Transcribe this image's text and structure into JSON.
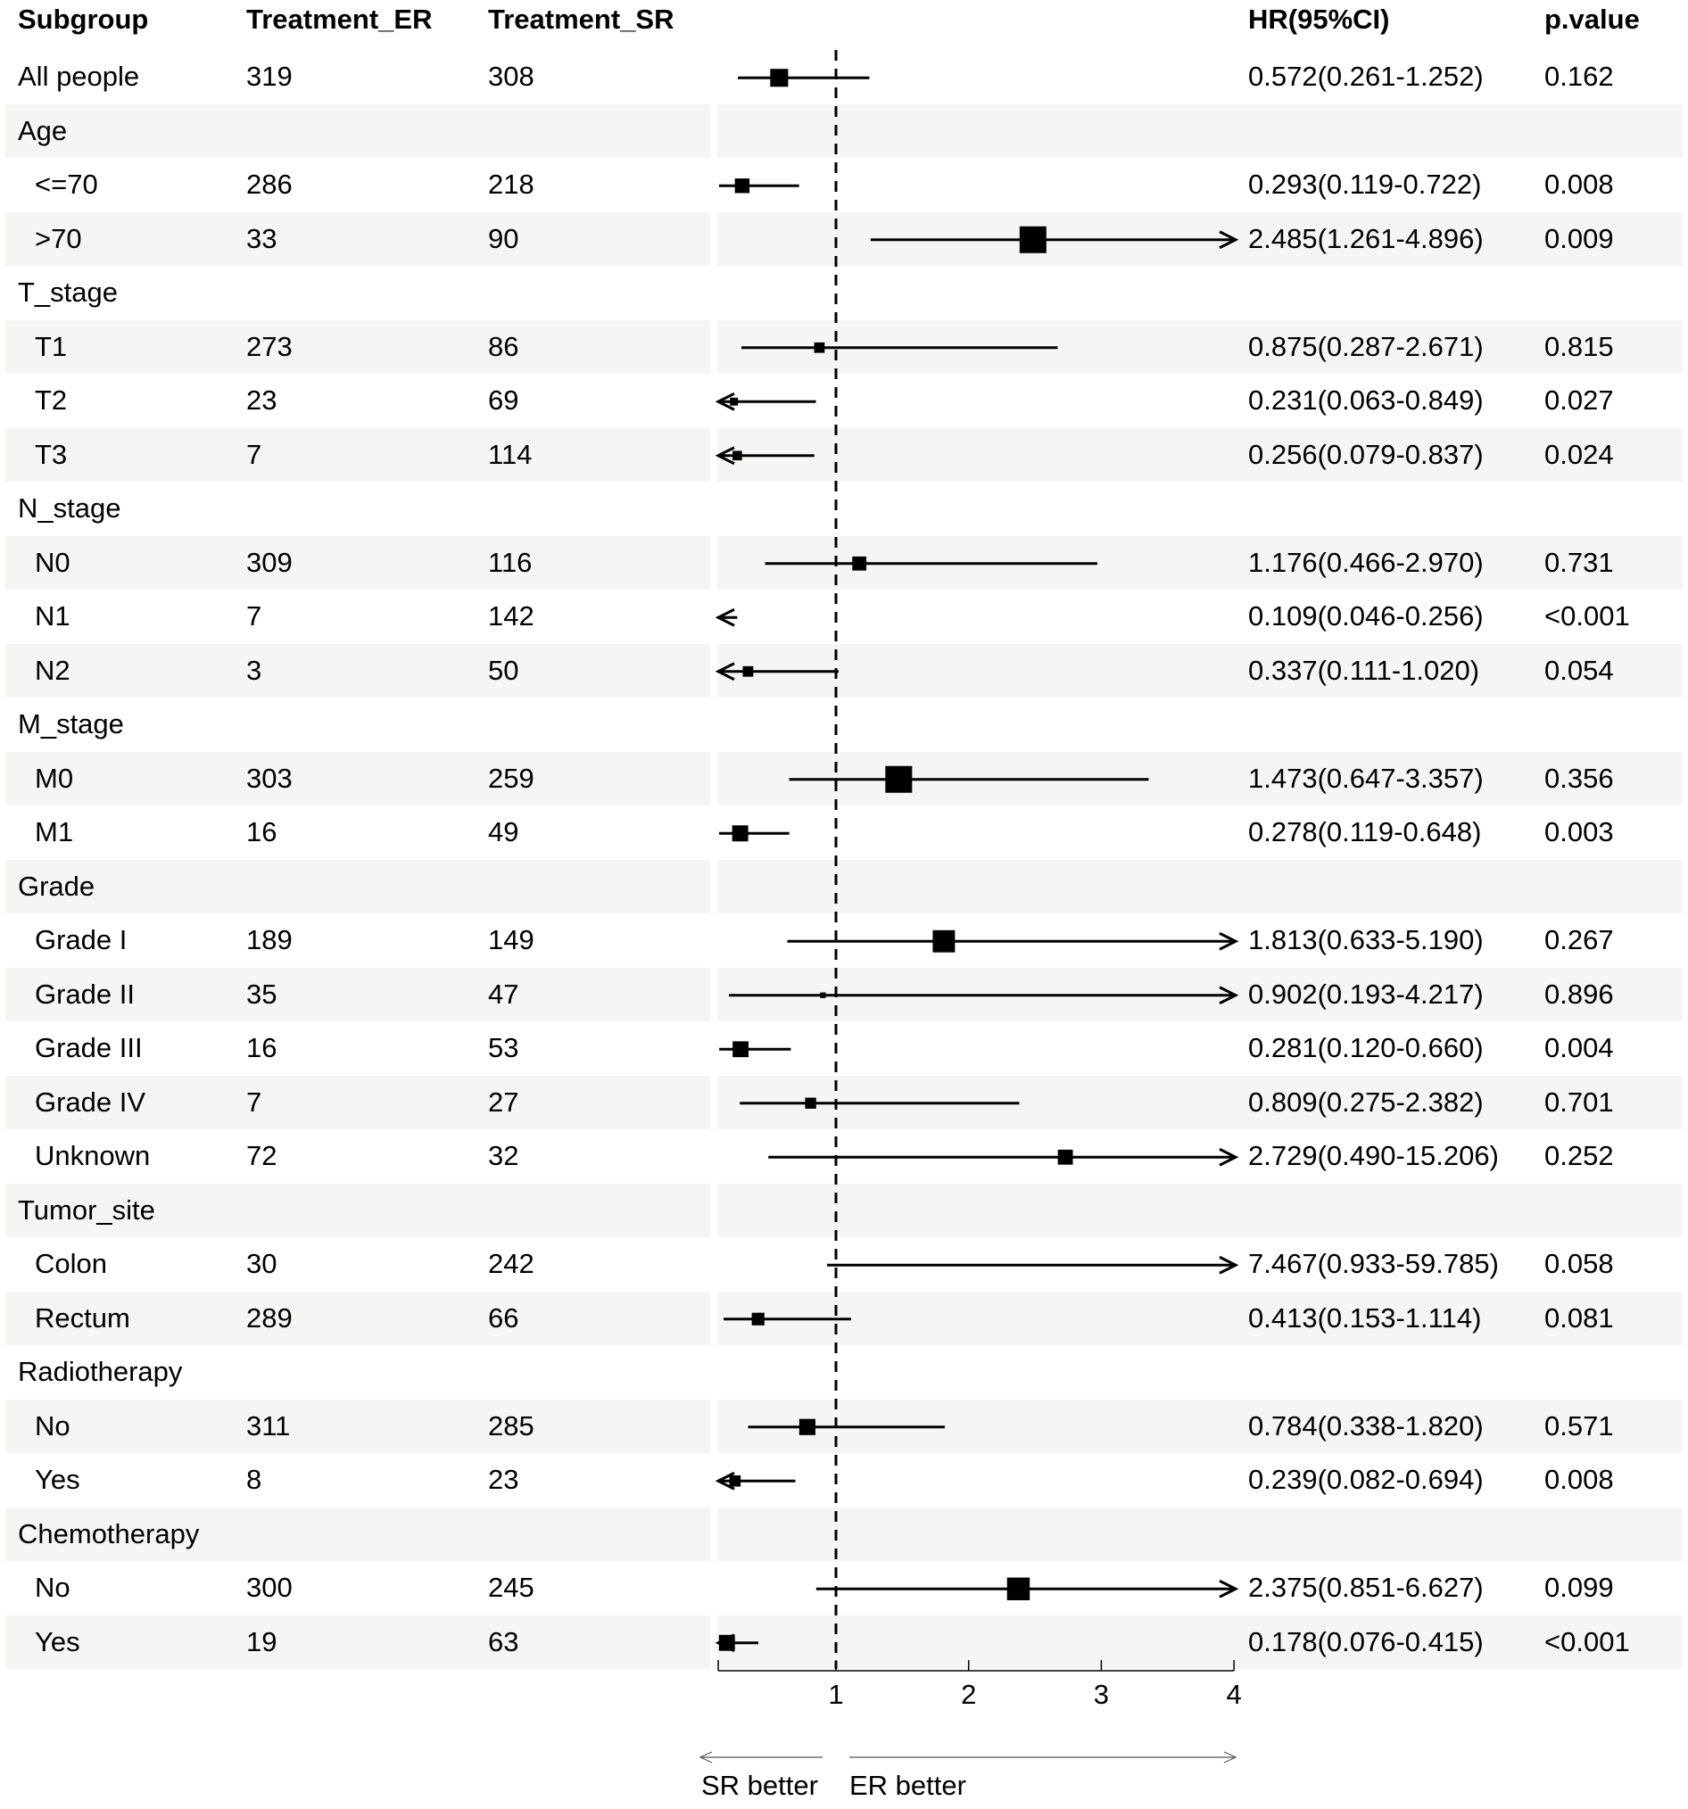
{
  "chart_data": {
    "type": "forest",
    "headers": {
      "subgroup": "Subgroup",
      "er": "Treatment_ER",
      "sr": "Treatment_SR",
      "hr": "HR(95%CI)",
      "p": "p.value"
    },
    "rows": [
      {
        "label": "All people",
        "child": false,
        "er": "319",
        "sr": "308",
        "hr": 0.572,
        "lo": 0.261,
        "hi": 1.252,
        "hr_text": "0.572(0.261-1.252)",
        "p": "0.162"
      },
      {
        "label": "Age",
        "group": true
      },
      {
        "label": "<=70",
        "child": true,
        "er": "286",
        "sr": "218",
        "hr": 0.293,
        "lo": 0.119,
        "hi": 0.722,
        "hr_text": "0.293(0.119-0.722)",
        "p": "0.008"
      },
      {
        "label": ">70",
        "child": true,
        "er": "33",
        "sr": "90",
        "hr": 2.485,
        "lo": 1.261,
        "hi": 4.896,
        "hr_text": "2.485(1.261-4.896)",
        "p": "0.009"
      },
      {
        "label": "T_stage",
        "group": true
      },
      {
        "label": "T1",
        "child": true,
        "er": "273",
        "sr": "86",
        "hr": 0.875,
        "lo": 0.287,
        "hi": 2.671,
        "hr_text": "0.875(0.287-2.671)",
        "p": "0.815"
      },
      {
        "label": "T2",
        "child": true,
        "er": "23",
        "sr": "69",
        "hr": 0.231,
        "lo": 0.063,
        "hi": 0.849,
        "hr_text": "0.231(0.063-0.849)",
        "p": "0.027"
      },
      {
        "label": "T3",
        "child": true,
        "er": "7",
        "sr": "114",
        "hr": 0.256,
        "lo": 0.079,
        "hi": 0.837,
        "hr_text": "0.256(0.079-0.837)",
        "p": "0.024"
      },
      {
        "label": "N_stage",
        "group": true
      },
      {
        "label": "N0",
        "child": true,
        "er": "309",
        "sr": "116",
        "hr": 1.176,
        "lo": 0.466,
        "hi": 2.97,
        "hr_text": "1.176(0.466-2.970)",
        "p": "0.731"
      },
      {
        "label": "N1",
        "child": true,
        "er": "7",
        "sr": "142",
        "hr": 0.109,
        "lo": 0.046,
        "hi": 0.256,
        "hr_text": "0.109(0.046-0.256)",
        "p": "<0.001"
      },
      {
        "label": "N2",
        "child": true,
        "er": "3",
        "sr": "50",
        "hr": 0.337,
        "lo": 0.111,
        "hi": 1.02,
        "hr_text": "0.337(0.111-1.020)",
        "p": "0.054"
      },
      {
        "label": "M_stage",
        "group": true
      },
      {
        "label": "M0",
        "child": true,
        "er": "303",
        "sr": "259",
        "hr": 1.473,
        "lo": 0.647,
        "hi": 3.357,
        "hr_text": "1.473(0.647-3.357)",
        "p": "0.356"
      },
      {
        "label": "M1",
        "child": true,
        "er": "16",
        "sr": "49",
        "hr": 0.278,
        "lo": 0.119,
        "hi": 0.648,
        "hr_text": "0.278(0.119-0.648)",
        "p": "0.003"
      },
      {
        "label": "Grade",
        "group": true
      },
      {
        "label": "Grade I",
        "child": true,
        "er": "189",
        "sr": "149",
        "hr": 1.813,
        "lo": 0.633,
        "hi": 5.19,
        "hr_text": "1.813(0.633-5.190)",
        "p": "0.267"
      },
      {
        "label": "Grade II",
        "child": true,
        "er": "35",
        "sr": "47",
        "hr": 0.902,
        "lo": 0.193,
        "hi": 4.217,
        "hr_text": "0.902(0.193-4.217)",
        "p": "0.896"
      },
      {
        "label": "Grade III",
        "child": true,
        "er": "16",
        "sr": "53",
        "hr": 0.281,
        "lo": 0.12,
        "hi": 0.66,
        "hr_text": "0.281(0.120-0.660)",
        "p": "0.004"
      },
      {
        "label": "Grade IV",
        "child": true,
        "er": "7",
        "sr": "27",
        "hr": 0.809,
        "lo": 0.275,
        "hi": 2.382,
        "hr_text": "0.809(0.275-2.382)",
        "p": "0.701"
      },
      {
        "label": "Unknown",
        "child": true,
        "er": "72",
        "sr": "32",
        "hr": 2.729,
        "lo": 0.49,
        "hi": 15.206,
        "hr_text": "2.729(0.490-15.206)",
        "p": "0.252"
      },
      {
        "label": "Tumor_site",
        "group": true
      },
      {
        "label": "Colon",
        "child": true,
        "er": "30",
        "sr": "242",
        "hr": 7.467,
        "lo": 0.933,
        "hi": 59.785,
        "hr_text": "7.467(0.933-59.785)",
        "p": "0.058"
      },
      {
        "label": "Rectum",
        "child": true,
        "er": "289",
        "sr": "66",
        "hr": 0.413,
        "lo": 0.153,
        "hi": 1.114,
        "hr_text": "0.413(0.153-1.114)",
        "p": "0.081"
      },
      {
        "label": "Radiotherapy",
        "group": true
      },
      {
        "label": "No",
        "child": true,
        "er": "311",
        "sr": "285",
        "hr": 0.784,
        "lo": 0.338,
        "hi": 1.82,
        "hr_text": "0.784(0.338-1.820)",
        "p": "0.571"
      },
      {
        "label": "Yes",
        "child": true,
        "er": "8",
        "sr": "23",
        "hr": 0.239,
        "lo": 0.082,
        "hi": 0.694,
        "hr_text": "0.239(0.082-0.694)",
        "p": "0.008"
      },
      {
        "label": "Chemotherapy",
        "group": true
      },
      {
        "label": "No",
        "child": true,
        "er": "300",
        "sr": "245",
        "hr": 2.375,
        "lo": 0.851,
        "hi": 6.627,
        "hr_text": "2.375(0.851-6.627)",
        "p": "0.099"
      },
      {
        "label": "Yes",
        "child": true,
        "er": "19",
        "sr": "63",
        "hr": 0.178,
        "lo": 0.076,
        "hi": 0.415,
        "hr_text": "0.178(0.076-0.415)",
        "p": "<0.001"
      }
    ],
    "x_axis": {
      "min": 0.12,
      "max": 4,
      "ticks": [
        1,
        2,
        3,
        4
      ],
      "tick_labels": [
        "1",
        "2",
        "3",
        "4"
      ],
      "reference": 1
    },
    "direction_labels": {
      "left": "SR better",
      "right": "ER better"
    }
  }
}
